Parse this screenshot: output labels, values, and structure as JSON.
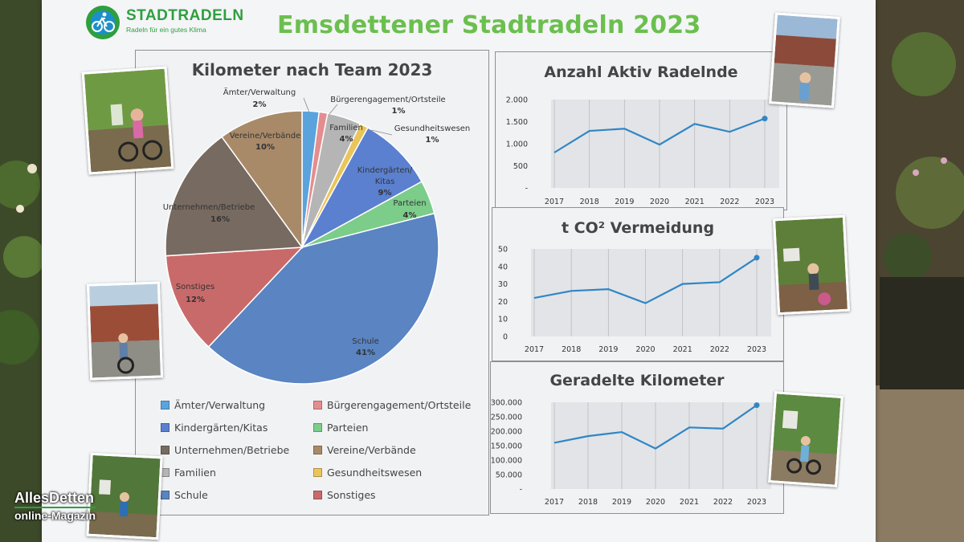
{
  "logo": {
    "name": "STADTRADELN",
    "tagline": "Radeln für ein gutes Klima"
  },
  "poster_title": "Emsdettener Stadtradeln 2023",
  "colors": {
    "title_green": "#6bbf4e",
    "line_blue": "#2f86c6",
    "logo_green": "#2e9f3e"
  },
  "watermark": {
    "line1": "AllesDetten",
    "line2": "online-Magazin"
  },
  "chart_data": [
    {
      "type": "pie",
      "title": "Kilometer nach Team 2023",
      "legend_position": "bottom",
      "slices": [
        {
          "label": "Ämter/Verwaltung",
          "value": 2,
          "pct_label": "2%",
          "color": "#5ba3dc"
        },
        {
          "label": "Bürgerengagement/Ortsteile",
          "value": 1,
          "pct_label": "1%",
          "color": "#e48d8f"
        },
        {
          "label": "Familien",
          "value": 4,
          "pct_label": "4%",
          "color": "#b5b5b5"
        },
        {
          "label": "Gesundheitswesen",
          "value": 1,
          "pct_label": "1%",
          "color": "#eac55b"
        },
        {
          "label": "Kindergärten/Kitas",
          "value": 9,
          "pct_label": "9%",
          "color": "#5b80d0"
        },
        {
          "label": "Parteien",
          "value": 4,
          "pct_label": "4%",
          "color": "#7ccc8a"
        },
        {
          "label": "Schule",
          "value": 41,
          "pct_label": "41%",
          "color": "#5a84c2"
        },
        {
          "label": "Sonstiges",
          "value": 12,
          "pct_label": "12%",
          "color": "#c96a6a"
        },
        {
          "label": "Unternehmen/Betriebe",
          "value": 16,
          "pct_label": "16%",
          "color": "#776a60"
        },
        {
          "label": "Vereine/Verbände",
          "value": 10,
          "pct_label": "10%",
          "color": "#a88a69"
        }
      ],
      "legend_order": [
        "Ämter/Verwaltung",
        "Bürgerengagement/Ortsteile",
        "Kindergärten/Kitas",
        "Parteien",
        "Unternehmen/Betriebe",
        "Vereine/Verbände",
        "Familien",
        "Gesundheitswesen",
        "Schule",
        "Sonstiges"
      ]
    },
    {
      "type": "line",
      "title": "Anzahl Aktiv Radelnde",
      "x": [
        "2017",
        "2018",
        "2019",
        "2020",
        "2021",
        "2022",
        "2023"
      ],
      "y": [
        800,
        1290,
        1340,
        980,
        1450,
        1270,
        1570
      ],
      "ylim": [
        0,
        2000
      ],
      "yticks": [
        "-",
        "500",
        "1.000",
        "1.500",
        "2.000"
      ],
      "grid": "vertical"
    },
    {
      "type": "line",
      "title": "t CO² Vermeidung",
      "x": [
        "2017",
        "2018",
        "2019",
        "2020",
        "2021",
        "2022",
        "2023"
      ],
      "y": [
        22,
        26,
        27,
        19,
        30,
        31,
        45
      ],
      "ylim": [
        0,
        50
      ],
      "yticks": [
        "0",
        "10",
        "20",
        "30",
        "40",
        "50"
      ],
      "grid": "vertical"
    },
    {
      "type": "line",
      "title": "Geradelte Kilometer",
      "x": [
        "2017",
        "2018",
        "2019",
        "2020",
        "2021",
        "2022",
        "2023"
      ],
      "y": [
        160000,
        183000,
        197000,
        140000,
        213000,
        209000,
        290000
      ],
      "ylim": [
        0,
        300000
      ],
      "yticks": [
        "-",
        "50.000",
        "100.000",
        "150.000",
        "200.000",
        "250.000",
        "300.000"
      ],
      "grid": "vertical"
    }
  ]
}
